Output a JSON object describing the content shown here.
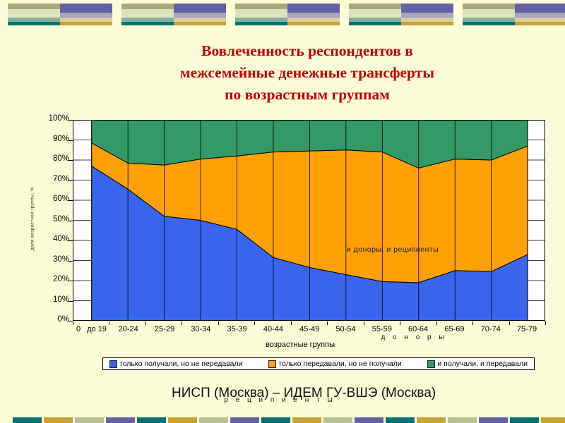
{
  "slide": {
    "title": "Вовлеченность респондентов в\nмежсемейные денежные трансферты\nпо возрастным группам",
    "footer": "НИСП (Москва) – ИДЕМ ГУ-ВШЭ (Москва)"
  },
  "chart_data": {
    "type": "area",
    "stacked": true,
    "title": "Вовлеченность респондентов в межсемейные денежные трансферты по возрастным группам",
    "xlabel": "возрастные группы",
    "ylabel": "доля возрастной группы, %",
    "x_axis_labels": [
      "0",
      "до 19",
      "20-24",
      "25-29",
      "30-34",
      "35-39",
      "40-44",
      "45-49",
      "50-54",
      "55-59",
      "60-64",
      "65-69",
      "70-74",
      "75-79"
    ],
    "categories": [
      "до 19",
      "20-24",
      "25-29",
      "30-34",
      "35-39",
      "40-44",
      "45-49",
      "50-54",
      "55-59",
      "60-64",
      "65-69",
      "70-74",
      "75-79"
    ],
    "y_ticks": [
      "0%",
      "10%",
      "20%",
      "30%",
      "40%",
      "50%",
      "60%",
      "70%",
      "80%",
      "90%",
      "100%"
    ],
    "ylim": [
      0,
      100
    ],
    "grid": true,
    "legend_position": "bottom",
    "plot_background": "#FFFFFF",
    "series": [
      {
        "name": "только получали, но не передавали",
        "label_in_chart": "р е ц и п и е н т ы",
        "color": "#3865EC",
        "values": [
          77,
          65.5,
          52,
          50,
          45.5,
          31.5,
          26.5,
          23,
          19.5,
          19,
          25,
          24.5,
          33
        ]
      },
      {
        "name": "только передавали, но не получали",
        "label_in_chart": "д о н о р ы",
        "color": "#FFA005",
        "values": [
          11.5,
          13,
          25.5,
          30.5,
          36.5,
          52.5,
          58,
          62,
          64.5,
          57,
          55.5,
          55.5,
          54
        ]
      },
      {
        "name": "и получали, и передавали",
        "label_in_chart": "и доноры, и реципиенты",
        "color": "#339966",
        "values": [
          11.5,
          21.5,
          22.5,
          19.5,
          18,
          16,
          15.5,
          15,
          16,
          24,
          19.5,
          20,
          13
        ]
      }
    ]
  },
  "decoration": {
    "background": "#FCFCD9",
    "title_color": "#C00000",
    "top_block_left_rows": [
      "#A6AA78",
      "#DCE2BE",
      "#82B09C",
      "#007470"
    ],
    "top_block_right_rows": [
      "#6460A4",
      "#A9A5BE",
      "#D7CCA6",
      "#C9A32F"
    ],
    "bottom_segment_colors": [
      "#007470",
      "#C9A32F",
      "#B9BF92",
      "#6460A4"
    ]
  }
}
